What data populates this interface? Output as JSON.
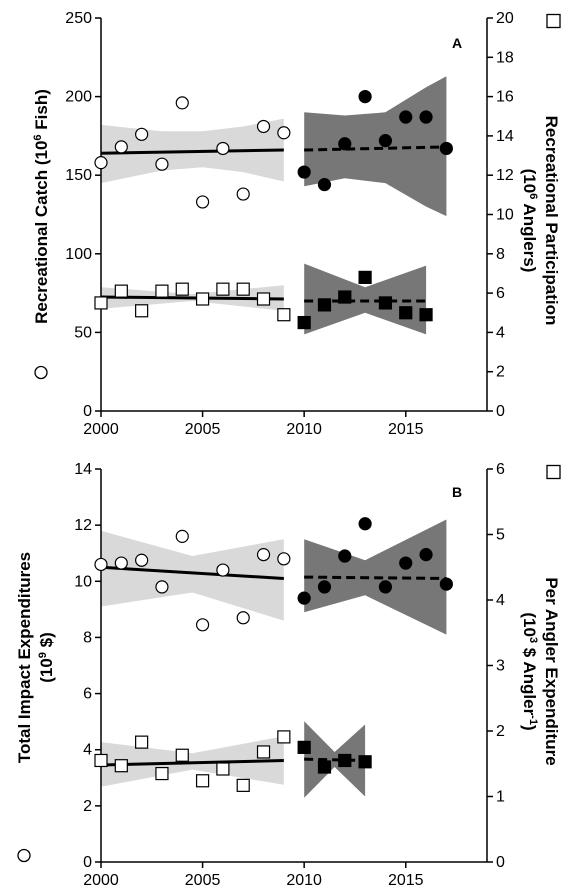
{
  "chart_data": [
    {
      "panel": "A",
      "type": "scatter",
      "x_ticks": [
        2000,
        2005,
        2010,
        2015
      ],
      "xlim": [
        2000,
        2019
      ],
      "left_axis": {
        "label_prefix": "Recreational Catch (10",
        "label_sup": "6",
        "label_suffix": " Fish)",
        "ylim": [
          0,
          250
        ],
        "ticks": [
          0,
          50,
          100,
          150,
          200,
          250
        ]
      },
      "right_axis": {
        "line1": "Recreational Participation",
        "line2_prefix": "(10",
        "line2_sup": "6",
        "line2_suffix": " Anglers)",
        "ylim": [
          0,
          20
        ],
        "ticks": [
          0,
          2,
          4,
          6,
          8,
          10,
          12,
          14,
          16,
          18,
          20
        ]
      },
      "series": [
        {
          "name": "Recreational Catch",
          "marker": "circle",
          "fill": "open",
          "axis": "left",
          "x": [
            2000,
            2001,
            2002,
            2003,
            2004,
            2005,
            2006,
            2007,
            2008,
            2009
          ],
          "y": [
            158,
            168,
            176,
            157,
            196,
            133,
            167,
            138,
            181,
            177
          ]
        },
        {
          "name": "Recreational Catch",
          "marker": "circle",
          "fill": "filled",
          "axis": "left",
          "x": [
            2010,
            2011,
            2012,
            2013,
            2014,
            2015,
            2016,
            2017
          ],
          "y": [
            152,
            144,
            170,
            200,
            172,
            187,
            187,
            167
          ]
        },
        {
          "name": "Recreational Participation",
          "marker": "square",
          "fill": "open",
          "axis": "right",
          "x": [
            2000,
            2001,
            2002,
            2003,
            2004,
            2005,
            2006,
            2007,
            2008,
            2009
          ],
          "y": [
            5.5,
            6.1,
            5.1,
            6.1,
            6.2,
            5.7,
            6.2,
            6.2,
            5.7,
            4.9
          ]
        },
        {
          "name": "Recreational Participation",
          "marker": "square",
          "fill": "filled",
          "axis": "right",
          "x": [
            2010,
            2011,
            2012,
            2013,
            2014,
            2015,
            2016
          ],
          "y": [
            4.5,
            5.4,
            5.8,
            6.8,
            5.5,
            5.0,
            4.9
          ]
        }
      ],
      "trends": [
        {
          "axis": "left",
          "style": "solid",
          "band": "light",
          "x": [
            2000,
            2009
          ],
          "y": [
            164,
            166
          ],
          "ci_x": [
            2000,
            2003,
            2005,
            2007,
            2009
          ],
          "ci_upper": [
            182,
            178,
            178,
            181,
            186
          ],
          "ci_lower": [
            145,
            153,
            155,
            152,
            146
          ]
        },
        {
          "axis": "left",
          "style": "dashed",
          "band": "dark",
          "x": [
            2010,
            2017
          ],
          "y": [
            166,
            168
          ],
          "ci_x": [
            2010,
            2012,
            2014,
            2016,
            2017
          ],
          "ci_upper": [
            190,
            188,
            190,
            206,
            213
          ],
          "ci_lower": [
            143,
            148,
            145,
            130,
            124
          ]
        },
        {
          "axis": "right",
          "style": "solid",
          "band": "light",
          "x": [
            2000,
            2009
          ],
          "y": [
            5.8,
            5.7
          ],
          "ci_x": [
            2000,
            2004.5,
            2009
          ],
          "ci_upper": [
            6.3,
            5.95,
            6.4
          ],
          "ci_lower": [
            5.2,
            5.6,
            5.1
          ]
        },
        {
          "axis": "right",
          "style": "dashed",
          "band": "dark",
          "x": [
            2010,
            2016
          ],
          "y": [
            5.6,
            5.6
          ],
          "ci_x": [
            2010,
            2013,
            2016
          ],
          "ci_upper": [
            7.5,
            6.3,
            7.4
          ],
          "ci_lower": [
            3.9,
            5.0,
            3.9
          ]
        }
      ]
    },
    {
      "panel": "B",
      "type": "scatter",
      "x_ticks": [
        2000,
        2005,
        2010,
        2015
      ],
      "xlim": [
        2000,
        2019
      ],
      "left_axis": {
        "line1": "Total Impact Expenditures",
        "line2_prefix": "(10",
        "line2_sup": "9",
        "line2_suffix": " $)",
        "ylim": [
          0,
          14
        ],
        "ticks": [
          0,
          2,
          4,
          6,
          8,
          10,
          12,
          14
        ]
      },
      "right_axis": {
        "line1": "Per Angler Expenditure",
        "line2_prefix": "(10",
        "line2_sup": "3",
        "line2_mid": " $ Angler",
        "line2_sup2": "-1",
        "line2_suffix": ")",
        "ylim": [
          0,
          6
        ],
        "ticks": [
          0,
          1,
          2,
          3,
          4,
          5,
          6
        ]
      },
      "series": [
        {
          "name": "Total Impact Expenditures",
          "marker": "circle",
          "fill": "open",
          "axis": "left",
          "x": [
            2000,
            2001,
            2002,
            2003,
            2004,
            2005,
            2006,
            2007,
            2008,
            2009
          ],
          "y": [
            10.6,
            10.65,
            10.75,
            9.8,
            11.6,
            8.45,
            10.4,
            8.7,
            10.95,
            10.8
          ]
        },
        {
          "name": "Total Impact Expenditures",
          "marker": "circle",
          "fill": "filled",
          "axis": "left",
          "x": [
            2010,
            2011,
            2012,
            2013,
            2014,
            2015,
            2016,
            2017
          ],
          "y": [
            9.4,
            9.8,
            10.9,
            12.05,
            9.8,
            10.65,
            10.95,
            9.9
          ]
        },
        {
          "name": "Per Angler Expenditure",
          "marker": "square",
          "fill": "open",
          "axis": "right",
          "x": [
            2000,
            2001,
            2002,
            2003,
            2004,
            2005,
            2006,
            2007,
            2008,
            2009
          ],
          "y": [
            1.55,
            1.47,
            1.83,
            1.35,
            1.63,
            1.24,
            1.42,
            1.17,
            1.68,
            1.91
          ]
        },
        {
          "name": "Per Angler Expenditure",
          "marker": "square",
          "fill": "filled",
          "axis": "right",
          "x": [
            2010,
            2011,
            2012,
            2013
          ],
          "y": [
            1.75,
            1.45,
            1.55,
            1.53
          ]
        }
      ],
      "trends": [
        {
          "axis": "left",
          "style": "solid",
          "band": "light",
          "x": [
            2000,
            2009
          ],
          "y": [
            10.5,
            10.1
          ],
          "ci_x": [
            2000,
            2004.5,
            2009
          ],
          "ci_upper": [
            11.8,
            10.9,
            11.5
          ],
          "ci_lower": [
            9.1,
            9.6,
            8.6
          ]
        },
        {
          "axis": "left",
          "style": "dashed",
          "band": "dark",
          "x": [
            2010,
            2017
          ],
          "y": [
            10.15,
            10.1
          ],
          "ci_x": [
            2010,
            2013,
            2017
          ],
          "ci_upper": [
            11.5,
            10.75,
            12.2
          ],
          "ci_lower": [
            8.9,
            9.5,
            8.1
          ]
        },
        {
          "axis": "right",
          "style": "solid",
          "band": "light",
          "x": [
            2000,
            2009
          ],
          "y": [
            1.48,
            1.55
          ],
          "ci_x": [
            2000,
            2004.5,
            2009
          ],
          "ci_upper": [
            1.83,
            1.66,
            1.92
          ],
          "ci_lower": [
            1.15,
            1.41,
            1.18
          ]
        },
        {
          "axis": "right",
          "style": "dashed",
          "band": "dark",
          "x": [
            2010,
            2013
          ],
          "y": [
            1.57,
            1.55
          ],
          "ci_x": [
            2010,
            2011.5,
            2013
          ],
          "ci_upper": [
            2.15,
            1.68,
            2.1
          ],
          "ci_lower": [
            0.98,
            1.45,
            1.0
          ]
        }
      ]
    }
  ]
}
